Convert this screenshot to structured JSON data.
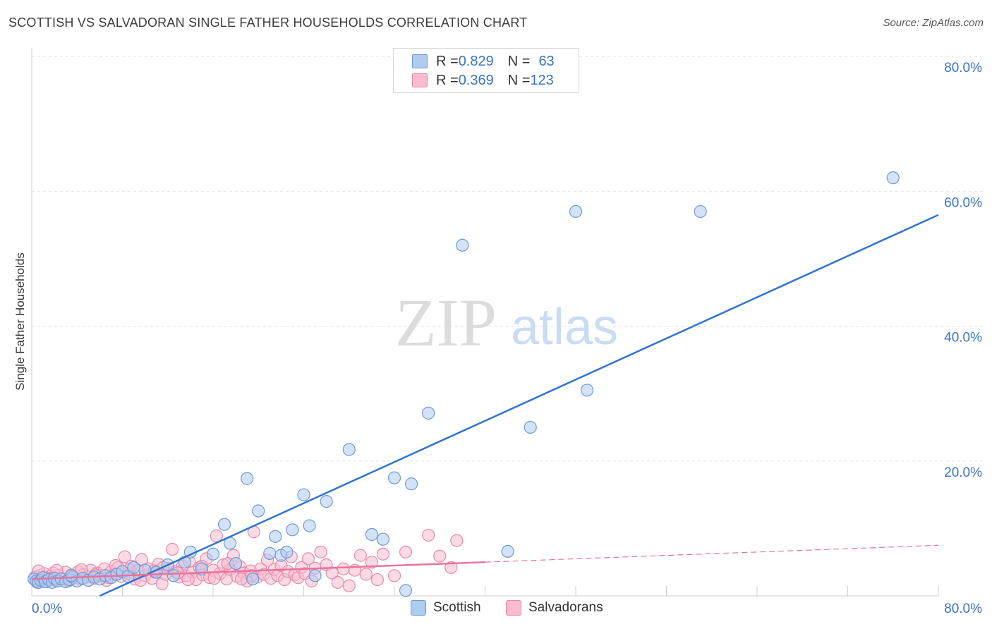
{
  "title": "SCOTTISH VS SALVADORAN SINGLE FATHER HOUSEHOLDS CORRELATION CHART",
  "source": "Source: ZipAtlas.com",
  "watermark": {
    "zip": "ZIP",
    "atlas": "atlas"
  },
  "legend_stats": [
    {
      "r_label": "R = ",
      "r_value": "0.829",
      "n_label": "N = ",
      "n_value": "63",
      "color": "#aecbf0",
      "border": "#6a9bd8"
    },
    {
      "r_label": "R = ",
      "r_value": "0.369",
      "n_label": "N = ",
      "n_value": "123",
      "color": "#f8bcd0",
      "border": "#e88aa8"
    }
  ],
  "bottom_legend": [
    {
      "label": "Scottish",
      "color": "#aecbf0",
      "border": "#6a9bd8"
    },
    {
      "label": "Salvadorans",
      "color": "#f8bcd0",
      "border": "#e88aa8"
    }
  ],
  "chart_data": {
    "type": "scatter",
    "title": "SCOTTISH VS SALVADORAN SINGLE FATHER HOUSEHOLDS CORRELATION CHART",
    "xlabel": "",
    "ylabel": "Single Father Households",
    "xlim": [
      0,
      80
    ],
    "ylim": [
      0,
      80
    ],
    "x_tick_labels": [
      "0.0%",
      "80.0%"
    ],
    "y_tick_labels": [
      "20.0%",
      "40.0%",
      "60.0%",
      "80.0%"
    ],
    "y_ticks": [
      20,
      40,
      60,
      80
    ],
    "grid": true,
    "legend_position": "top-center",
    "series": [
      {
        "name": "Scottish",
        "color": "#6a9bd8",
        "fill": "#aecbf0",
        "points": [
          [
            0.2,
            2.5
          ],
          [
            0.4,
            2.2
          ],
          [
            0.6,
            2.0
          ],
          [
            0.8,
            2.3
          ],
          [
            1.0,
            2.7
          ],
          [
            1.2,
            2.1
          ],
          [
            1.5,
            2.4
          ],
          [
            1.8,
            2.0
          ],
          [
            2.0,
            2.6
          ],
          [
            2.3,
            2.2
          ],
          [
            2.6,
            2.5
          ],
          [
            3.0,
            2.1
          ],
          [
            3.3,
            2.4
          ],
          [
            3.6,
            2.8
          ],
          [
            4.0,
            2.2
          ],
          [
            4.5,
            2.6
          ],
          [
            5.0,
            2.3
          ],
          [
            5.5,
            2.8
          ],
          [
            6.0,
            2.5
          ],
          [
            6.5,
            3.0
          ],
          [
            7.0,
            2.7
          ],
          [
            7.5,
            3.2
          ],
          [
            8.0,
            3.6
          ],
          [
            8.5,
            2.9
          ],
          [
            9.0,
            4.2
          ],
          [
            10.0,
            3.8
          ],
          [
            11.0,
            3.5
          ],
          [
            12.0,
            4.6
          ],
          [
            12.5,
            3.0
          ],
          [
            13.5,
            5.0
          ],
          [
            14.0,
            6.5
          ],
          [
            15.0,
            4.0
          ],
          [
            16.0,
            6.2
          ],
          [
            17.0,
            10.6
          ],
          [
            17.5,
            7.8
          ],
          [
            18.0,
            4.8
          ],
          [
            19.0,
            17.4
          ],
          [
            19.5,
            2.5
          ],
          [
            20.0,
            12.6
          ],
          [
            21.0,
            6.3
          ],
          [
            21.5,
            8.8
          ],
          [
            22.0,
            6.0
          ],
          [
            22.5,
            6.5
          ],
          [
            23.0,
            9.8
          ],
          [
            24.0,
            15.0
          ],
          [
            24.5,
            10.4
          ],
          [
            25.0,
            3.0
          ],
          [
            26.0,
            14.0
          ],
          [
            28.0,
            21.7
          ],
          [
            30.0,
            9.1
          ],
          [
            31.0,
            8.4
          ],
          [
            32.0,
            17.5
          ],
          [
            33.0,
            0.8
          ],
          [
            33.5,
            16.6
          ],
          [
            35.0,
            27.1
          ],
          [
            38.0,
            52.0
          ],
          [
            42.0,
            6.6
          ],
          [
            44.0,
            25.0
          ],
          [
            48.0,
            57.0
          ],
          [
            49.0,
            30.5
          ],
          [
            59.0,
            57.0
          ],
          [
            76.0,
            62.0
          ],
          [
            3.5,
            3.0
          ]
        ],
        "trend": {
          "x0": 6,
          "y0": 0,
          "x1": 80,
          "y1": 56.5,
          "style": "solid"
        }
      },
      {
        "name": "Salvadorans",
        "color": "#e88aa8",
        "fill": "#f8bcd0",
        "points": [
          [
            0.3,
            2.8
          ],
          [
            0.5,
            2.0
          ],
          [
            0.7,
            3.0
          ],
          [
            0.9,
            2.4
          ],
          [
            1.1,
            3.3
          ],
          [
            1.3,
            2.1
          ],
          [
            1.6,
            2.9
          ],
          [
            1.9,
            3.4
          ],
          [
            2.1,
            2.3
          ],
          [
            2.4,
            3.0
          ],
          [
            2.7,
            2.6
          ],
          [
            3.0,
            3.5
          ],
          [
            3.2,
            2.2
          ],
          [
            3.5,
            3.1
          ],
          [
            3.8,
            2.7
          ],
          [
            4.1,
            3.6
          ],
          [
            4.3,
            2.5
          ],
          [
            4.6,
            3.2
          ],
          [
            4.9,
            2.8
          ],
          [
            5.2,
            3.8
          ],
          [
            5.5,
            2.6
          ],
          [
            5.8,
            3.4
          ],
          [
            6.1,
            3.0
          ],
          [
            6.4,
            4.0
          ],
          [
            6.7,
            2.7
          ],
          [
            7.0,
            3.6
          ],
          [
            7.3,
            3.1
          ],
          [
            7.6,
            4.2
          ],
          [
            7.9,
            2.9
          ],
          [
            8.2,
            5.8
          ],
          [
            8.5,
            3.3
          ],
          [
            8.8,
            4.4
          ],
          [
            9.1,
            2.5
          ],
          [
            9.4,
            3.8
          ],
          [
            9.7,
            5.4
          ],
          [
            10.0,
            3.0
          ],
          [
            10.3,
            4.0
          ],
          [
            10.6,
            2.6
          ],
          [
            10.9,
            3.5
          ],
          [
            11.2,
            4.7
          ],
          [
            11.5,
            1.8
          ],
          [
            11.8,
            3.2
          ],
          [
            12.1,
            4.1
          ],
          [
            12.4,
            6.9
          ],
          [
            12.7,
            3.6
          ],
          [
            13.0,
            2.8
          ],
          [
            13.3,
            4.4
          ],
          [
            13.6,
            3.0
          ],
          [
            13.9,
            5.1
          ],
          [
            14.2,
            3.5
          ],
          [
            14.5,
            2.4
          ],
          [
            14.8,
            4.2
          ],
          [
            15.1,
            3.1
          ],
          [
            15.4,
            5.5
          ],
          [
            15.7,
            2.7
          ],
          [
            16.0,
            3.8
          ],
          [
            16.3,
            8.9
          ],
          [
            16.6,
            3.3
          ],
          [
            16.9,
            4.6
          ],
          [
            17.2,
            2.5
          ],
          [
            17.5,
            3.9
          ],
          [
            17.8,
            6.0
          ],
          [
            18.1,
            2.9
          ],
          [
            18.4,
            4.3
          ],
          [
            18.7,
            3.4
          ],
          [
            19.0,
            2.2
          ],
          [
            19.3,
            3.7
          ],
          [
            19.6,
            9.5
          ],
          [
            19.9,
            2.8
          ],
          [
            20.2,
            4.0
          ],
          [
            20.5,
            3.2
          ],
          [
            20.8,
            5.3
          ],
          [
            21.1,
            2.6
          ],
          [
            21.4,
            3.9
          ],
          [
            21.7,
            3.0
          ],
          [
            22.0,
            4.5
          ],
          [
            22.3,
            2.4
          ],
          [
            22.6,
            3.6
          ],
          [
            22.9,
            5.8
          ],
          [
            23.2,
            3.1
          ],
          [
            23.5,
            2.7
          ],
          [
            23.8,
            4.2
          ],
          [
            24.1,
            3.3
          ],
          [
            24.4,
            5.5
          ],
          [
            24.7,
            2.2
          ],
          [
            25.0,
            4.1
          ],
          [
            25.5,
            6.5
          ],
          [
            26.0,
            4.6
          ],
          [
            26.5,
            3.4
          ],
          [
            27.0,
            2.0
          ],
          [
            27.5,
            4.0
          ],
          [
            28.0,
            1.5
          ],
          [
            28.5,
            3.8
          ],
          [
            29.0,
            6.0
          ],
          [
            29.5,
            3.2
          ],
          [
            30.0,
            5.0
          ],
          [
            30.5,
            2.4
          ],
          [
            31.0,
            6.2
          ],
          [
            32.0,
            3.0
          ],
          [
            33.0,
            6.5
          ],
          [
            35.0,
            9.0
          ],
          [
            36.0,
            5.9
          ],
          [
            37.0,
            4.2
          ],
          [
            37.5,
            8.2
          ],
          [
            0.6,
            3.7
          ],
          [
            1.4,
            2.6
          ],
          [
            2.2,
            3.8
          ],
          [
            3.4,
            2.4
          ],
          [
            4.4,
            3.9
          ],
          [
            5.6,
            3.1
          ],
          [
            6.6,
            2.3
          ],
          [
            7.4,
            4.5
          ],
          [
            8.6,
            3.9
          ],
          [
            9.6,
            2.3
          ],
          [
            10.8,
            3.7
          ],
          [
            11.6,
            4.2
          ],
          [
            12.9,
            3.4
          ],
          [
            13.8,
            2.4
          ],
          [
            15.0,
            4.4
          ],
          [
            16.1,
            2.6
          ],
          [
            17.3,
            4.8
          ],
          [
            18.5,
            2.5
          ],
          [
            19.4,
            3.0
          ]
        ],
        "trend": {
          "x0": 0,
          "y0": 2.5,
          "x1": 40,
          "y1": 5.0,
          "dashed_to_x": 80,
          "dashed_to_y": 7.5,
          "style": "solid-then-dashed"
        }
      }
    ]
  }
}
